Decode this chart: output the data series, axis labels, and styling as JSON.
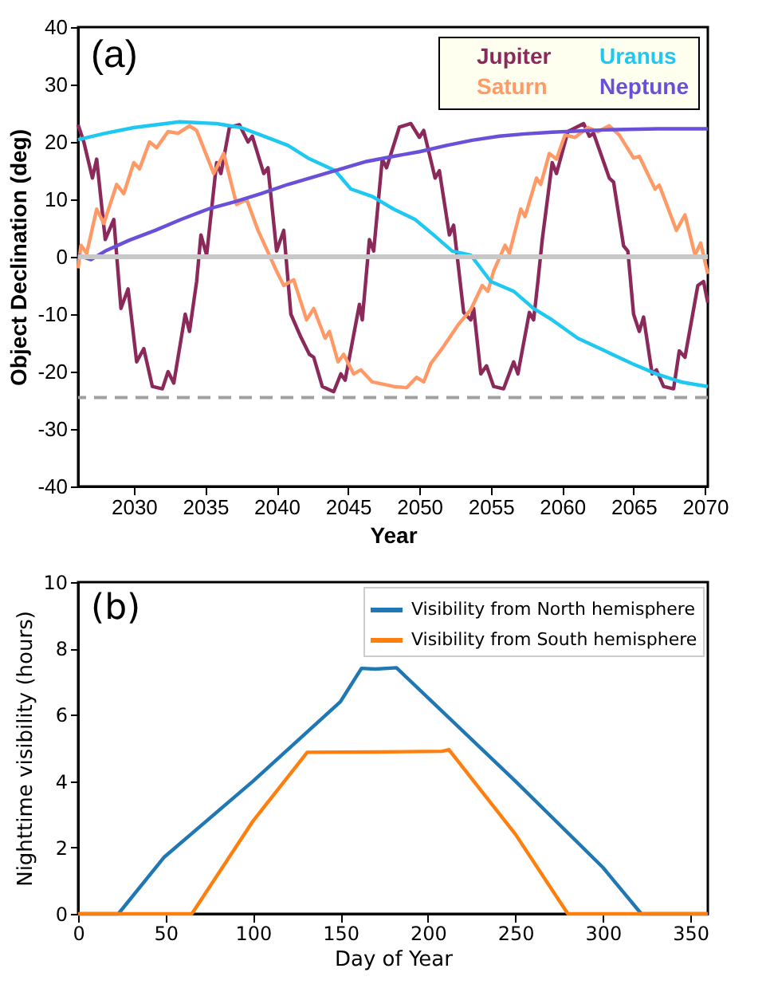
{
  "chart_data": [
    {
      "type": "line",
      "xlabel": "Year",
      "ylabel": "Object Declination (deg)",
      "annotations": [
        "(a)"
      ],
      "xlim": [
        2026.1,
        2070.2
      ],
      "ylim": [
        -40,
        40
      ],
      "xticks": [
        2030,
        2035,
        2040,
        2045,
        2050,
        2055,
        2060,
        2065,
        2070
      ],
      "yticks": [
        -40,
        -30,
        -20,
        -10,
        0,
        10,
        20,
        30,
        40
      ],
      "grid": false,
      "legend": "top right",
      "ref_lines": [
        {
          "axis": "y",
          "value": 0,
          "color": "#c8c8c8",
          "line_style": "solid"
        },
        {
          "axis": "y",
          "value": -24.5,
          "color": "#a0a0a0",
          "line_style": "dashed"
        }
      ],
      "series": [
        {
          "name": "Jupiter",
          "color": "#8b2a5a",
          "x": [
            2026.1,
            2026.5,
            2027.1,
            2027.4,
            2028,
            2028.6,
            2029.1,
            2029.6,
            2030.2,
            2030.7,
            2031.3,
            2032,
            2032.4,
            2032.8,
            2033.6,
            2033.9,
            2034.4,
            2034.7,
            2035.1,
            2035.8,
            2036.1,
            2036.7,
            2037.4,
            2038,
            2038.3,
            2039.1,
            2039.4,
            2040,
            2040.5,
            2041,
            2041.7,
            2042.3,
            2042.6,
            2043.2,
            2044,
            2044.5,
            2044.8,
            2045.8,
            2046,
            2046.5,
            2046.8,
            2047.4,
            2047.7,
            2048.6,
            2049.4,
            2050,
            2050.3,
            2051.1,
            2051.4,
            2052.1,
            2052.4,
            2053.1,
            2053.6,
            2053.8,
            2054.3,
            2054.7,
            2055.2,
            2055.9,
            2056.6,
            2056.9,
            2057.7,
            2058,
            2058.3,
            2058.6,
            2059.3,
            2059.6,
            2060.4,
            2061.5,
            2061.9,
            2062.2,
            2063.3,
            2063.6,
            2064.3,
            2064.6,
            2065,
            2065.4,
            2065.7,
            2066.3,
            2066.6,
            2067.1,
            2067.8,
            2068.2,
            2068.6,
            2069.5,
            2069.9,
            2070.2
          ],
          "values": [
            23,
            20,
            13.7,
            17,
            3,
            6.5,
            -9,
            -5.6,
            -18.3,
            -16,
            -22.6,
            -23,
            -20,
            -22,
            -10,
            -13,
            -4.3,
            3.8,
            0.3,
            16.4,
            14.5,
            22.6,
            23,
            20,
            21,
            14.5,
            15.5,
            1,
            4.6,
            -10,
            -14,
            -17,
            -17.5,
            -22.6,
            -23.5,
            -20.4,
            -21.5,
            -8.3,
            -11,
            3,
            1,
            17,
            15.5,
            22.6,
            23.2,
            20.8,
            22,
            13.7,
            15,
            3.8,
            5.5,
            -9.7,
            -11,
            -9,
            -20.4,
            -19,
            -22.6,
            -23,
            -18.3,
            -20.4,
            -9.7,
            -11,
            -4.3,
            2.9,
            16.4,
            14.5,
            21.8,
            23.2,
            21,
            21.5,
            13.7,
            13,
            1.9,
            1,
            -10,
            -13,
            -10.5,
            -20.4,
            -19.7,
            -22.6,
            -23,
            -16.4,
            -17.5,
            -5,
            -4.3,
            -8
          ]
        },
        {
          "name": "Saturn",
          "color": "#ff9966",
          "x": [
            2026.1,
            2026.3,
            2026.7,
            2027.4,
            2027.9,
            2028.8,
            2029.3,
            2030,
            2030.4,
            2031.1,
            2031.6,
            2032.4,
            2033.1,
            2033.9,
            2034.4,
            2035.6,
            2036.3,
            2037.2,
            2037.9,
            2038.7,
            2040,
            2040.5,
            2041.2,
            2042.1,
            2042.6,
            2043.4,
            2043.7,
            2044.3,
            2044.7,
            2045.4,
            2045.9,
            2046.7,
            2048.2,
            2049.1,
            2049.8,
            2050.3,
            2050.8,
            2051.7,
            2052.7,
            2053.6,
            2054.4,
            2054.8,
            2055.2,
            2056,
            2056.3,
            2057.1,
            2057.4,
            2058.2,
            2058.5,
            2059.1,
            2059.6,
            2060.2,
            2060.9,
            2061.8,
            2062.5,
            2063.3,
            2064,
            2065,
            2065.4,
            2066.5,
            2066.8,
            2068,
            2068.6,
            2069.3,
            2069.7,
            2070.2
          ],
          "values": [
            -2,
            2,
            0.6,
            8.3,
            5.8,
            12.6,
            11,
            16.4,
            15.3,
            20,
            19,
            21.8,
            21.5,
            22.8,
            22,
            14.5,
            18,
            9.1,
            10,
            4.6,
            -2.5,
            -5,
            -4,
            -11,
            -9,
            -14.2,
            -13,
            -18.3,
            -17,
            -20.4,
            -19.7,
            -21.8,
            -22.6,
            -22.8,
            -21,
            -21.8,
            -18.6,
            -15.6,
            -11.9,
            -9.2,
            -5,
            -6,
            -2.5,
            2,
            0.6,
            8.3,
            7,
            13.7,
            12.6,
            18,
            17,
            21.2,
            20.8,
            22.5,
            21.8,
            22.8,
            21.2,
            17.2,
            17.5,
            11.8,
            12.5,
            4.6,
            7.3,
            0.3,
            2.4,
            -3
          ]
        },
        {
          "name": "Uranus",
          "color": "#1ec8f0",
          "x": [
            2026.1,
            2028,
            2030,
            2033.2,
            2035.8,
            2037.5,
            2038.9,
            2040.8,
            2042.2,
            2044.1,
            2045.2,
            2046.7,
            2048.2,
            2049.7,
            2051,
            2052.3,
            2053.6,
            2055,
            2056.6,
            2058,
            2059.3,
            2061.1,
            2063,
            2064.9,
            2066.6,
            2068.3,
            2070.2
          ],
          "values": [
            20.4,
            21.5,
            22.5,
            23.5,
            23.2,
            22.5,
            21.2,
            19.4,
            17.2,
            15,
            11.8,
            10.5,
            8.3,
            6.5,
            3.8,
            1,
            0.3,
            -4.3,
            -6,
            -9,
            -11,
            -14.2,
            -16.4,
            -18.6,
            -20.4,
            -21.8,
            -22.6
          ]
        },
        {
          "name": "Neptune",
          "color": "#6a4fd8",
          "x": [
            2026.1,
            2027,
            2028,
            2029.7,
            2031.5,
            2033.3,
            2035.2,
            2037.1,
            2038.9,
            2040.8,
            2042.6,
            2044.5,
            2046.3,
            2048.2,
            2050,
            2051.9,
            2053.7,
            2055.6,
            2057.4,
            2059.3,
            2063,
            2066.7,
            2070.2
          ],
          "values": [
            0.3,
            -0.5,
            1,
            2.9,
            4.6,
            6.5,
            8.3,
            9.6,
            11,
            12.6,
            13.9,
            15.3,
            16.6,
            17.5,
            18.3,
            19.4,
            20.3,
            21,
            21.4,
            21.7,
            22.1,
            22.3,
            22.3
          ]
        }
      ]
    },
    {
      "type": "line",
      "xlabel": "Day of Year",
      "ylabel": "Nighttime visibility (hours)",
      "annotations": [
        "(b)"
      ],
      "xlim": [
        0,
        360
      ],
      "ylim": [
        0,
        10
      ],
      "xticks": [
        0,
        50,
        100,
        150,
        200,
        250,
        300,
        350
      ],
      "yticks": [
        0,
        2,
        4,
        6,
        8,
        10
      ],
      "grid": false,
      "legend": "top right",
      "series": [
        {
          "name": "Visibility from North hemisphere",
          "color": "#1f77b4",
          "x": [
            0,
            23,
            49,
            100,
            150,
            162,
            170,
            182,
            250,
            300,
            322,
            360
          ],
          "values": [
            0,
            0,
            1.7,
            4.0,
            6.4,
            7.4,
            7.38,
            7.42,
            4.0,
            1.4,
            0,
            0
          ]
        },
        {
          "name": "Visibility from South hemisphere",
          "color": "#ff7f0e",
          "x": [
            0,
            65,
            100,
            131,
            170,
            208,
            212,
            250,
            280,
            360
          ],
          "values": [
            0,
            0,
            2.8,
            4.87,
            4.88,
            4.9,
            4.95,
            2.4,
            0,
            0
          ]
        }
      ]
    }
  ]
}
